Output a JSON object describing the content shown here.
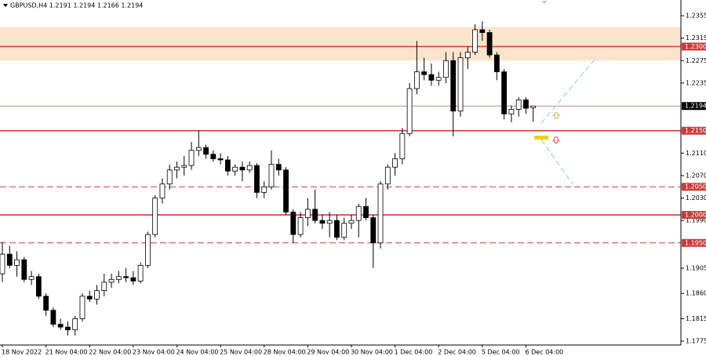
{
  "chart_data": {
    "type": "candlestick",
    "title": "GBPUSD,H4  1.2191 1.2194 1.2166 1.2194",
    "categories": [
      "18 Nov 2022",
      null,
      null,
      null,
      null,
      null,
      "21 Nov 04:00",
      null,
      null,
      null,
      null,
      null,
      "22 Nov 04:00",
      null,
      null,
      null,
      null,
      null,
      "23 Nov 04:00",
      null,
      null,
      null,
      null,
      null,
      "24 Nov 04:00",
      null,
      null,
      null,
      null,
      null,
      "25 Nov 04:00",
      null,
      null,
      null,
      null,
      null,
      "28 Nov 04:00",
      null,
      null,
      null,
      null,
      null,
      "29 Nov 04:00",
      null,
      null,
      null,
      null,
      null,
      "30 Nov 04:00",
      null,
      null,
      null,
      null,
      null,
      "1 Dec 04:00",
      null,
      null,
      null,
      null,
      null,
      "2 Dec 04:00",
      null,
      null,
      null,
      null,
      null,
      "5 Dec 04:00",
      null,
      null,
      null,
      null,
      null,
      "6 Dec 04:00",
      null
    ],
    "open": [
      1.1895,
      1.193,
      1.191,
      1.192,
      1.1885,
      1.189,
      1.1855,
      1.183,
      1.1805,
      1.18,
      1.1795,
      1.1815,
      1.1855,
      1.185,
      1.1865,
      1.188,
      1.1885,
      1.189,
      1.1888,
      1.1882,
      1.191,
      1.1965,
      1.203,
      1.2055,
      1.208,
      1.2085,
      1.2088,
      1.2115,
      1.212,
      1.2108,
      1.21,
      1.2098,
      1.2078,
      1.2085,
      1.208,
      1.2088,
      1.204,
      1.205,
      1.209,
      1.208,
      1.2005,
      1.1965,
      1.1995,
      1.201,
      1.199,
      1.1985,
      1.199,
      1.196,
      1.1985,
      1.199,
      1.2015,
      1.1995,
      1.195,
      1.2055,
      1.2085,
      1.21,
      1.2145,
      1.2225,
      1.2255,
      1.225,
      1.224,
      1.2245,
      1.2275,
      1.2185,
      1.228,
      1.229,
      1.233,
      1.2325,
      1.2285,
      1.2255,
      1.218,
      1.2188,
      1.2205,
      1.2191
    ],
    "high": [
      1.1952,
      1.1945,
      1.1935,
      1.1925,
      1.19,
      1.1895,
      1.186,
      1.1835,
      1.1815,
      1.181,
      1.182,
      1.186,
      1.1865,
      1.1875,
      1.1895,
      1.1895,
      1.19,
      1.1905,
      1.19,
      1.1915,
      1.197,
      1.2035,
      1.2065,
      1.209,
      1.2095,
      1.2105,
      1.213,
      1.215,
      1.2125,
      1.2115,
      1.211,
      1.2105,
      1.209,
      1.2095,
      1.2095,
      1.2092,
      1.206,
      1.2115,
      1.21,
      1.2085,
      1.201,
      1.2005,
      1.203,
      1.2045,
      1.2,
      1.2005,
      1.2,
      1.1995,
      1.2,
      1.202,
      1.203,
      1.2,
      1.206,
      1.209,
      1.211,
      1.2155,
      1.2235,
      1.231,
      1.228,
      1.227,
      1.2255,
      1.229,
      1.229,
      1.229,
      1.23,
      1.234,
      1.2345,
      1.233,
      1.229,
      1.226,
      1.2195,
      1.221,
      1.221,
      1.2194
    ],
    "low": [
      1.188,
      1.1905,
      1.189,
      1.188,
      1.1875,
      1.185,
      1.182,
      1.18,
      1.1795,
      1.1785,
      1.1785,
      1.181,
      1.1845,
      1.184,
      1.1855,
      1.187,
      1.1878,
      1.188,
      1.1875,
      1.1878,
      1.1905,
      1.196,
      1.202,
      1.2045,
      1.2065,
      1.207,
      1.208,
      1.2105,
      1.21,
      1.2095,
      1.209,
      1.207,
      1.207,
      1.206,
      1.2075,
      1.203,
      1.203,
      1.2045,
      1.207,
      1.2,
      1.195,
      1.196,
      1.198,
      1.1985,
      1.1975,
      1.196,
      1.1955,
      1.1955,
      1.1975,
      1.196,
      1.199,
      1.1905,
      1.194,
      1.2045,
      1.207,
      1.209,
      1.214,
      1.2215,
      1.224,
      1.223,
      1.223,
      1.2235,
      1.214,
      1.2175,
      1.226,
      1.2285,
      1.231,
      1.228,
      1.224,
      1.217,
      1.2165,
      1.2175,
      1.218,
      1.2166
    ],
    "close": [
      1.193,
      1.191,
      1.192,
      1.1885,
      1.189,
      1.1855,
      1.183,
      1.1805,
      1.18,
      1.1795,
      1.1815,
      1.1855,
      1.185,
      1.1865,
      1.188,
      1.1885,
      1.189,
      1.1888,
      1.1882,
      1.191,
      1.1965,
      1.203,
      1.2055,
      1.208,
      1.2085,
      1.2088,
      1.2115,
      1.212,
      1.2108,
      1.21,
      1.2098,
      1.2078,
      1.2085,
      1.208,
      1.2088,
      1.204,
      1.205,
      1.209,
      1.208,
      1.2005,
      1.1965,
      1.1995,
      1.201,
      1.199,
      1.1985,
      1.199,
      1.196,
      1.1985,
      1.199,
      1.2015,
      1.1995,
      1.195,
      1.2055,
      1.2085,
      1.21,
      1.2145,
      1.2225,
      1.2255,
      1.225,
      1.224,
      1.2245,
      1.2275,
      1.2185,
      1.228,
      1.229,
      1.233,
      1.2325,
      1.2285,
      1.2255,
      1.218,
      1.2188,
      1.2205,
      1.219,
      1.2194
    ],
    "ylim": [
      1.1768,
      1.2383
    ],
    "yticks": [
      1.2355,
      1.2315,
      1.2275,
      1.2235,
      {
        "value": 1.211,
        "label": "1.2110"
      },
      {
        "value": 1.207,
        "label": "1.2070"
      },
      {
        "value": 1.203,
        "label": "1.2030"
      },
      {
        "value": 1.199,
        "label": "1.1990"
      },
      1.1905,
      {
        "value": 1.186,
        "label": "1.1860"
      },
      1.1815,
      1.1775
    ],
    "zone": [
      1.2335,
      1.2275
    ],
    "levels": [
      {
        "value": 1.23,
        "label": "1.2300",
        "style": "solid"
      },
      {
        "value": 1.215,
        "label": "1.2150",
        "style": "solid"
      },
      {
        "value": 1.205,
        "label": "1.2050",
        "style": "dashed"
      },
      {
        "value": 1.2,
        "label": "1.2000",
        "style": "solid"
      },
      {
        "value": 1.195,
        "label": "1.1950",
        "style": "dashed"
      }
    ],
    "current_price": 1.2194,
    "bull_color": "#ffffff",
    "bear_color": "#000000",
    "level_color": "#cc3b3b",
    "zone_color": "#fbe4cc"
  }
}
